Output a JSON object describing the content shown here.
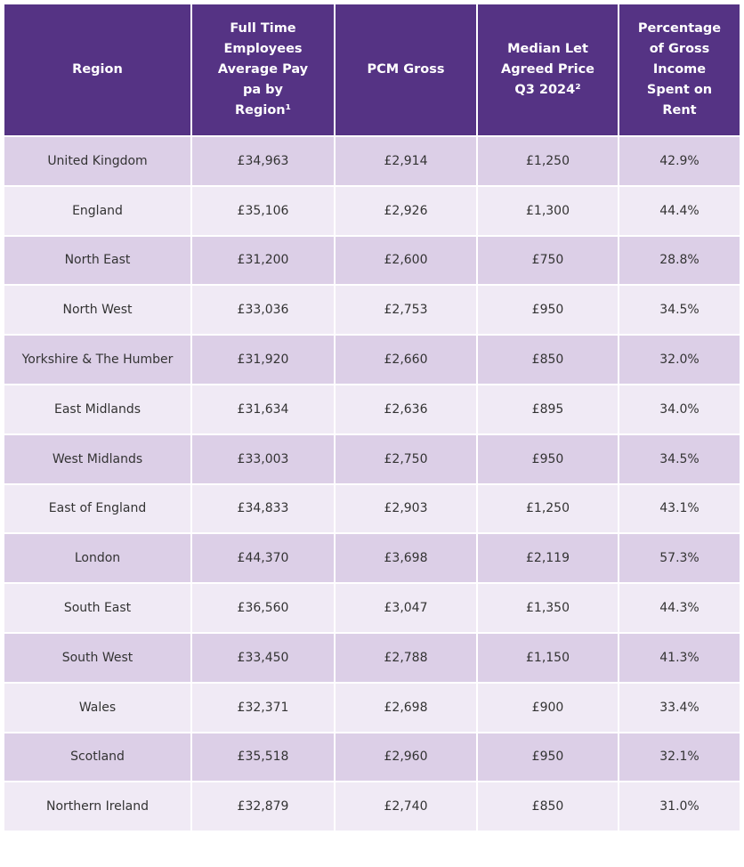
{
  "table": {
    "header": [
      "Region",
      "Full Time Employees Average Pay pa by Region¹",
      "PCM Gross",
      "Median Let Agreed Price Q3 2024²",
      "Percentage of Gross Income Spent on Rent"
    ],
    "rows": [
      [
        "United Kingdom",
        "£34,963",
        "£2,914",
        "£1,250",
        "42.9%"
      ],
      [
        "England",
        "£35,106",
        "£2,926",
        "£1,300",
        "44.4%"
      ],
      [
        "North East",
        "£31,200",
        "£2,600",
        "£750",
        "28.8%"
      ],
      [
        "North West",
        "£33,036",
        "£2,753",
        "£950",
        "34.5%"
      ],
      [
        "Yorkshire & The Humber",
        "£31,920",
        "£2,660",
        "£850",
        "32.0%"
      ],
      [
        "East Midlands",
        "£31,634",
        "£2,636",
        "£895",
        "34.0%"
      ],
      [
        "West Midlands",
        "£33,003",
        "£2,750",
        "£950",
        "34.5%"
      ],
      [
        "East of England",
        "£34,833",
        "£2,903",
        "£1,250",
        "43.1%"
      ],
      [
        "London",
        "£44,370",
        "£3,698",
        "£2,119",
        "57.3%"
      ],
      [
        "South East",
        "£36,560",
        "£3,047",
        "£1,350",
        "44.3%"
      ],
      [
        "South West",
        "£33,450",
        "£2,788",
        "£1,150",
        "41.3%"
      ],
      [
        "Wales",
        "£32,371",
        "£2,698",
        "£900",
        "33.4%"
      ],
      [
        "Scotland",
        "£35,518",
        "£2,960",
        "£950",
        "32.1%"
      ],
      [
        "Northern Ireland",
        "£32,879",
        "£2,740",
        "£850",
        "31.0%"
      ]
    ]
  }
}
